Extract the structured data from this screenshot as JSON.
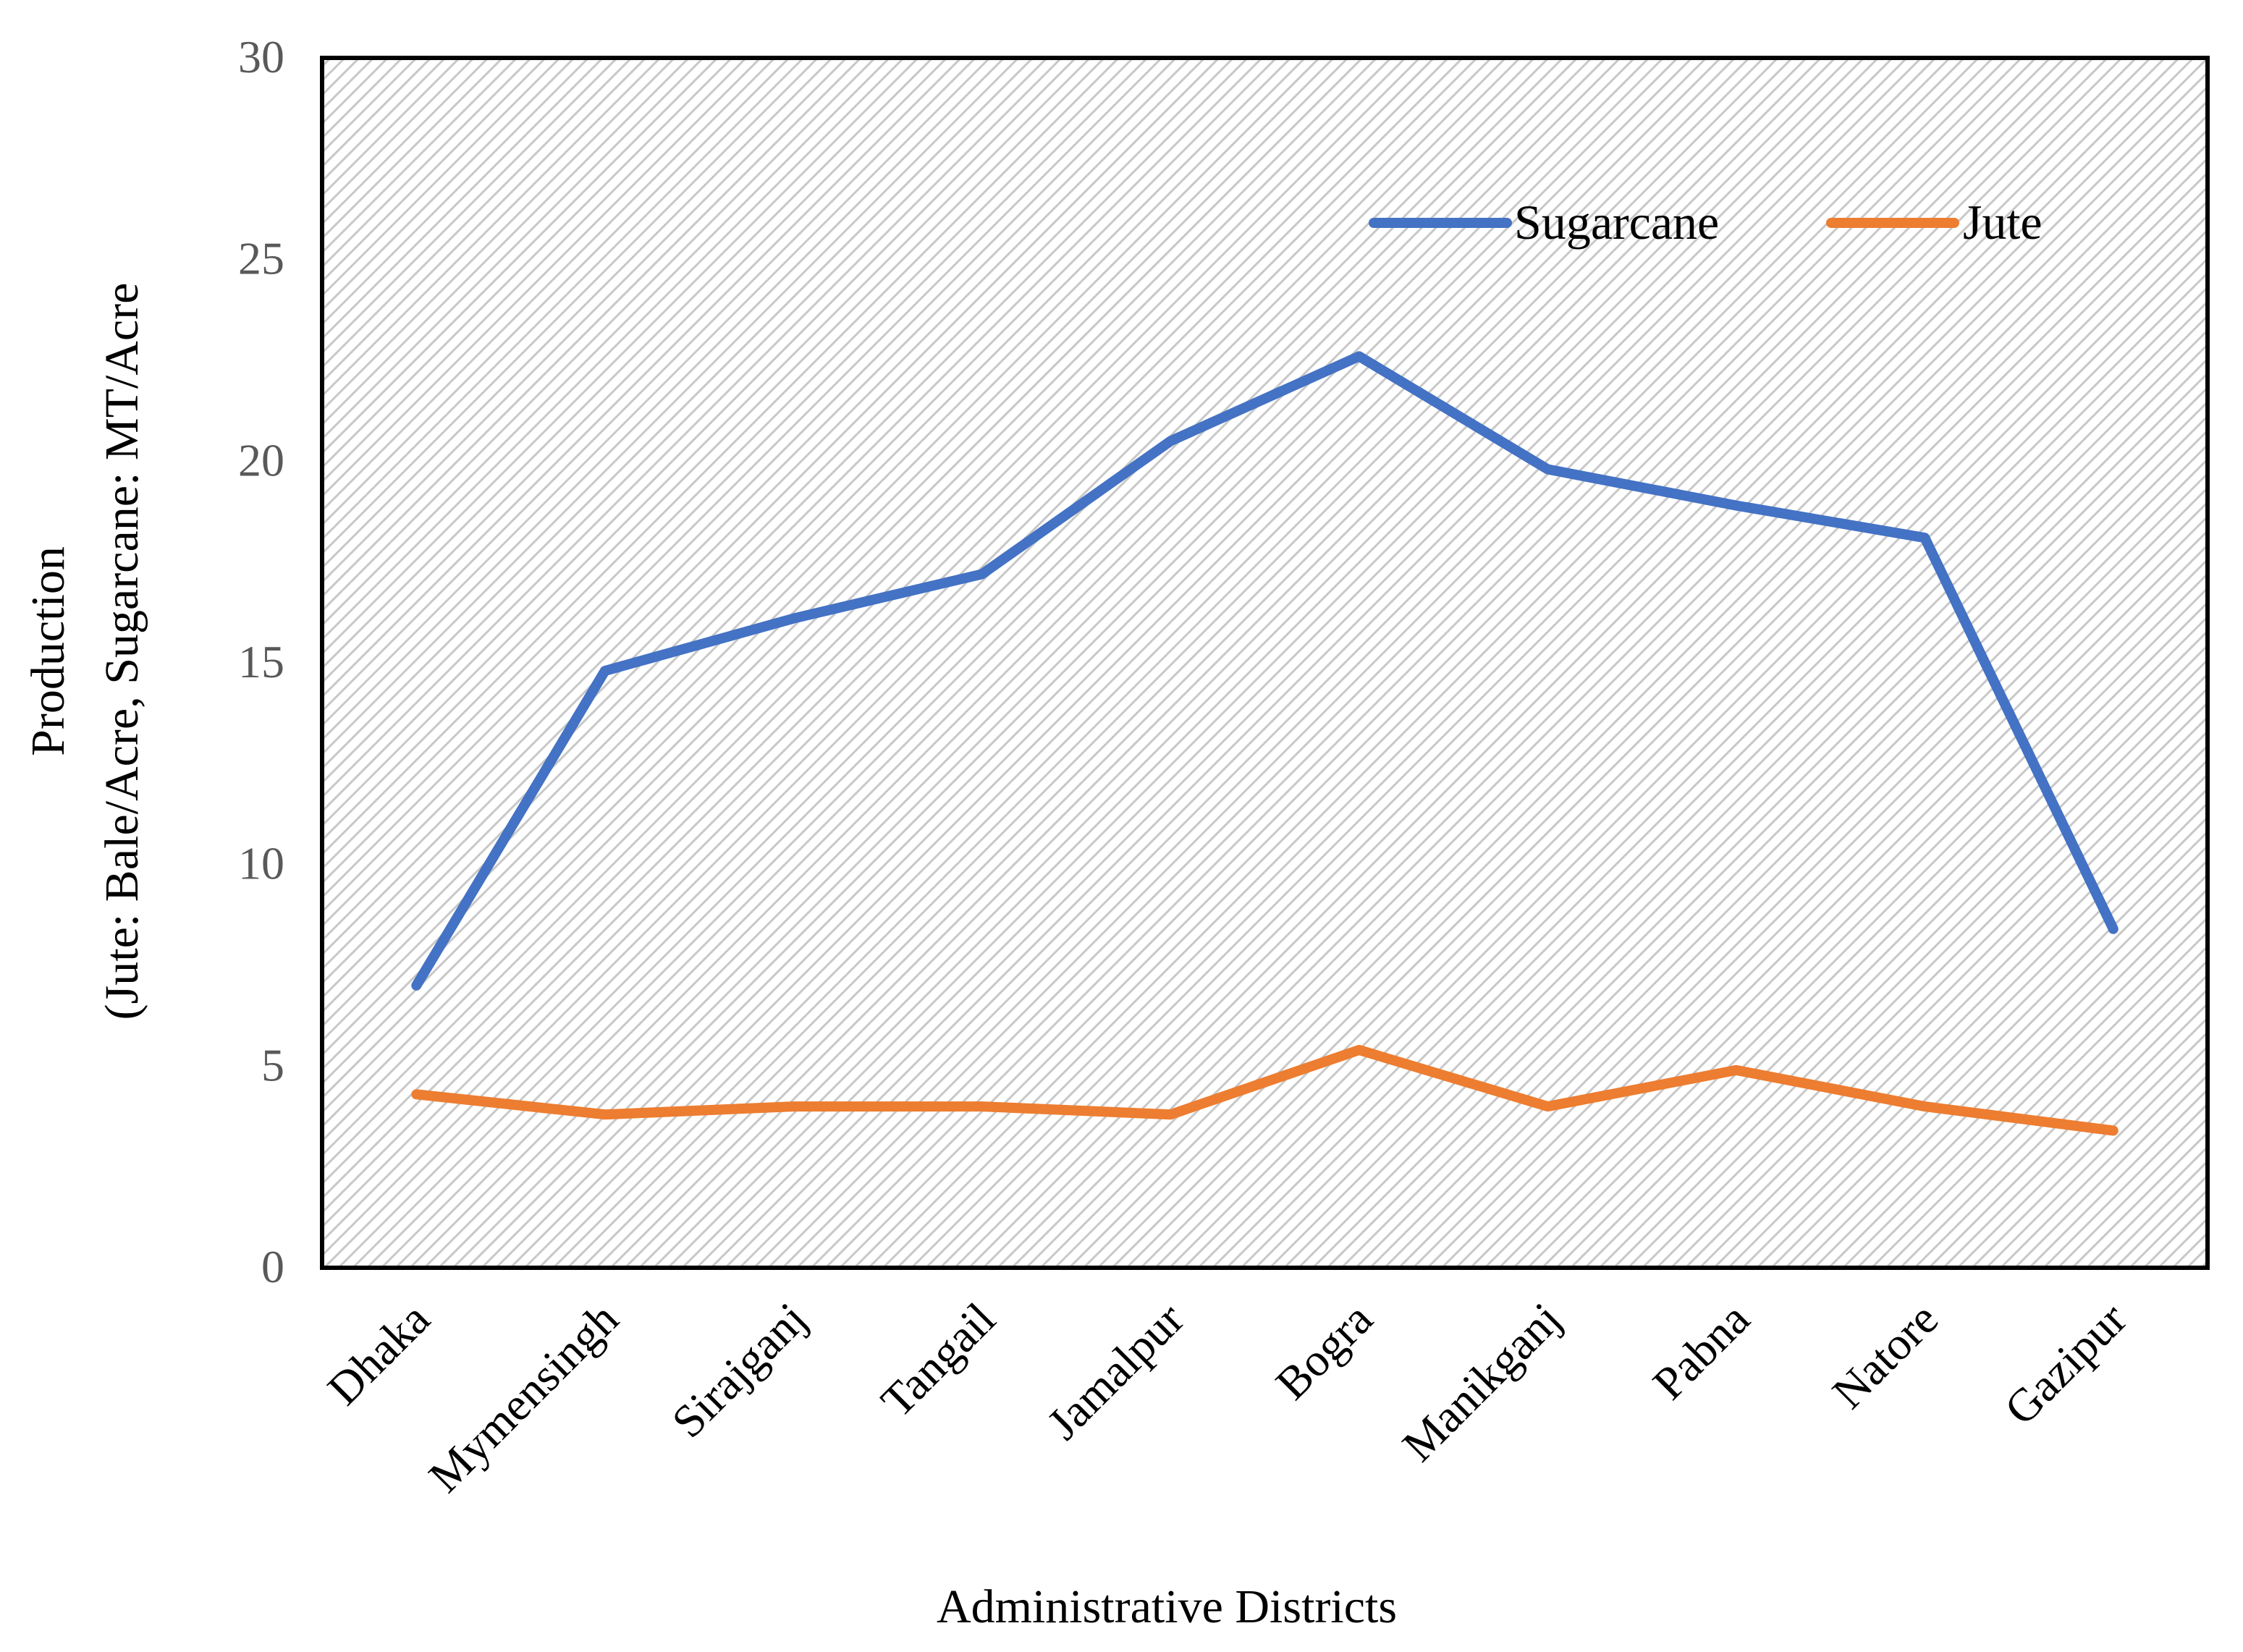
{
  "chart_data": {
    "type": "line",
    "title": "",
    "xlabel": "Administrative Districts",
    "ylabel_line1": "Production",
    "ylabel_line2": "(Jute: Bale/Acre, Sugarcane: MT/Acre",
    "categories": [
      "Dhaka",
      "Mymensingh",
      "Sirajganj",
      "Tangail",
      "Jamalpur",
      "Bogra",
      "Manikganj",
      "Pabna",
      "Natore",
      "Gazipur"
    ],
    "ylim": [
      0,
      30
    ],
    "yticks": [
      0,
      5,
      10,
      15,
      20,
      25,
      30
    ],
    "series": [
      {
        "name": "Sugarcane",
        "color": "#4472C4",
        "values": [
          7.0,
          14.8,
          16.1,
          17.2,
          20.5,
          22.6,
          19.8,
          18.9,
          18.1,
          8.4
        ]
      },
      {
        "name": "Jute",
        "color": "#ED7D31",
        "values": [
          4.3,
          3.8,
          4.0,
          4.0,
          3.8,
          5.4,
          4.0,
          4.9,
          4.0,
          3.4
        ]
      }
    ],
    "legend_position": "top-right",
    "grid": false,
    "plot_background": "hatched-gray"
  }
}
